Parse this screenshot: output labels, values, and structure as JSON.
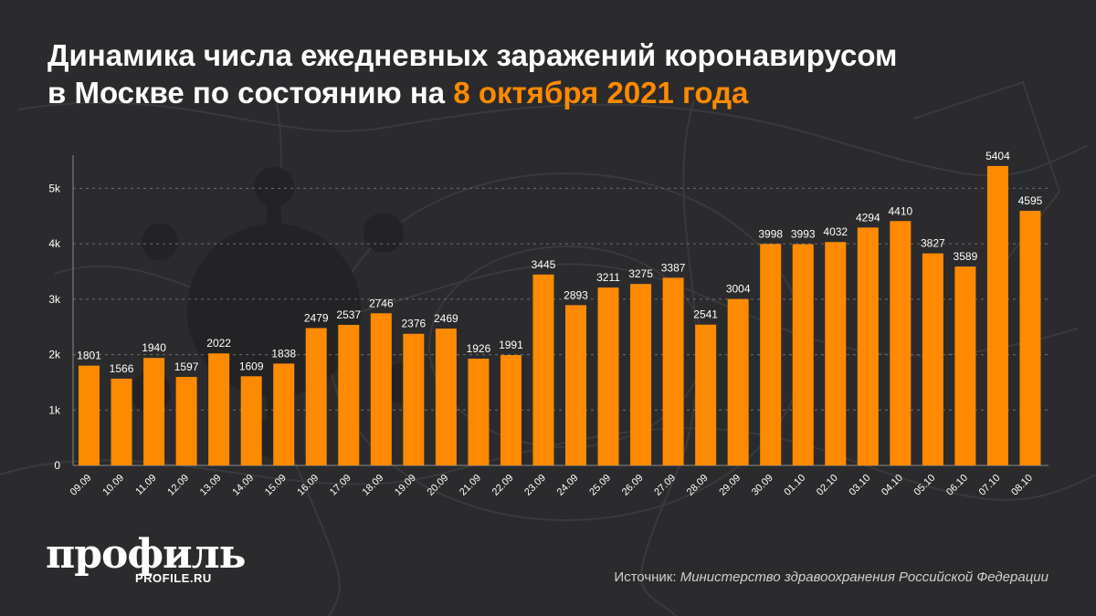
{
  "header": {
    "title_part1": "Динамика числа ежедневных заражений коронавирусом",
    "title_part2": "в Москве по состоянию на",
    "title_highlight": "8 октября 2021 года"
  },
  "brand": {
    "logo_text": "профиль",
    "site": "PROFILE.RU"
  },
  "footer": {
    "source_label": "Источник:",
    "source_value": "Министерство здравоохранения Российской Федерации"
  },
  "colors": {
    "background": "#2b2b2d",
    "bar": "#ff8a00",
    "accent_text": "#ff8a00",
    "text": "#ffffff"
  },
  "chart_data": {
    "type": "bar",
    "categories": [
      "09.09",
      "10.09",
      "11.09",
      "12.09",
      "13.09",
      "14.09",
      "15.09",
      "16.09",
      "17.09",
      "18.09",
      "19.09",
      "20.09",
      "21.09",
      "22.09",
      "23.09",
      "24.09",
      "25.09",
      "26.09",
      "27.09",
      "28.09",
      "29.09",
      "30.09",
      "01.10",
      "02.10",
      "03.10",
      "04.10",
      "05.10",
      "06.10",
      "07.10",
      "08.10"
    ],
    "values": [
      1801,
      1566,
      1940,
      1597,
      2022,
      1609,
      1838,
      2479,
      2537,
      2746,
      2376,
      2469,
      1926,
      1991,
      3445,
      2893,
      3211,
      3275,
      3387,
      2541,
      3004,
      3998,
      3993,
      4032,
      4294,
      4410,
      3827,
      3589,
      5404,
      4595
    ],
    "data_labels": [
      "1801",
      "1566",
      "1940",
      "1597",
      "2022",
      "1609",
      "1838",
      "2479",
      "2537",
      "2746",
      "2376",
      "2469",
      "1926",
      "1991",
      "3445",
      "2893",
      "3211",
      "3275",
      "3387",
      "2541",
      "3004",
      "3998",
      "3993",
      "4032",
      "4294",
      "4410",
      "3827",
      "3589",
      "5404",
      "4595"
    ],
    "y_ticks": [
      0,
      1000,
      2000,
      3000,
      4000,
      5000
    ],
    "y_tick_labels": [
      "0",
      "1k",
      "2k",
      "3k",
      "4k",
      "5k"
    ],
    "ylim": [
      0,
      5600
    ],
    "grid": true,
    "xlabel": "",
    "ylabel": ""
  }
}
